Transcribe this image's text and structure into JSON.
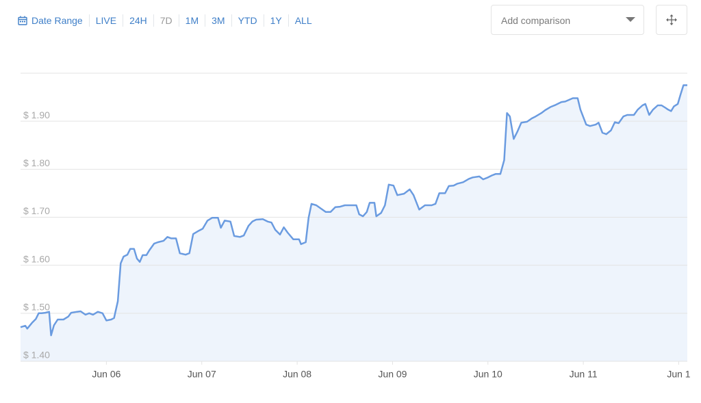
{
  "toolbar": {
    "date_range": "Date Range",
    "ranges": [
      "LIVE",
      "24H",
      "7D",
      "1M",
      "3M",
      "YTD",
      "1Y",
      "ALL"
    ],
    "comparison_placeholder": "Add comparison"
  },
  "chart_data": {
    "type": "area",
    "color": "#6a9be0",
    "fill": "#eef4fc",
    "grid": true,
    "xlim": [
      -0.9,
      6.09
    ],
    "ylim": [
      1.4,
      2.0
    ],
    "xticks": [
      {
        "value": 0,
        "label": "Jun 06"
      },
      {
        "value": 1,
        "label": "Jun 07"
      },
      {
        "value": 2,
        "label": "Jun 08"
      },
      {
        "value": 3,
        "label": "Jun 09"
      },
      {
        "value": 4,
        "label": "Jun 10"
      },
      {
        "value": 5,
        "label": "Jun 11"
      },
      {
        "value": 6,
        "label": "Jun 1"
      }
    ],
    "yticks": [
      {
        "value": 1.4,
        "label": "$ 1.40"
      },
      {
        "value": 1.5,
        "label": "$ 1.50"
      },
      {
        "value": 1.6,
        "label": "$ 1.60"
      },
      {
        "value": 1.7,
        "label": "$ 1.70"
      },
      {
        "value": 1.8,
        "label": "$ 1.80"
      },
      {
        "value": 1.9,
        "label": "$ 1.90"
      }
    ],
    "x": [
      -0.9,
      -0.85,
      -0.83,
      -0.78,
      -0.74,
      -0.71,
      -0.68,
      -0.64,
      -0.6,
      -0.58,
      -0.55,
      -0.51,
      -0.45,
      -0.4,
      -0.37,
      -0.31,
      -0.27,
      -0.22,
      -0.18,
      -0.14,
      -0.09,
      -0.04,
      0,
      0.05,
      0.08,
      0.12,
      0.15,
      0.18,
      0.22,
      0.25,
      0.29,
      0.32,
      0.35,
      0.38,
      0.42,
      0.45,
      0.5,
      0.54,
      0.6,
      0.64,
      0.68,
      0.73,
      0.77,
      0.83,
      0.87,
      0.91,
      0.97,
      1.01,
      1.06,
      1.11,
      1.17,
      1.2,
      1.24,
      1.3,
      1.34,
      1.4,
      1.44,
      1.49,
      1.53,
      1.57,
      1.64,
      1.69,
      1.73,
      1.77,
      1.82,
      1.86,
      1.9,
      1.96,
      2.02,
      2.04,
      2.09,
      2.12,
      2.15,
      2.2,
      2.25,
      2.3,
      2.35,
      2.4,
      2.45,
      2.5,
      2.56,
      2.62,
      2.65,
      2.69,
      2.73,
      2.76,
      2.81,
      2.83,
      2.88,
      2.92,
      2.96,
      3.01,
      3.05,
      3.12,
      3.18,
      3.22,
      3.28,
      3.34,
      3.41,
      3.45,
      3.49,
      3.55,
      3.59,
      3.64,
      3.68,
      3.74,
      3.8,
      3.84,
      3.91,
      3.95,
      4.0,
      4.04,
      4.08,
      4.13,
      4.17,
      4.2,
      4.23,
      4.27,
      4.31,
      4.35,
      4.41,
      4.46,
      4.5,
      4.56,
      4.6,
      4.66,
      4.71,
      4.77,
      4.81,
      4.89,
      4.94,
      4.97,
      5.03,
      5.07,
      5.13,
      5.16,
      5.2,
      5.24,
      5.29,
      5.33,
      5.37,
      5.42,
      5.46,
      5.53,
      5.57,
      5.62,
      5.65,
      5.69,
      5.73,
      5.78,
      5.82,
      5.86,
      5.89,
      5.92,
      5.95,
      5.99,
      6.02,
      6.05,
      6.09
    ],
    "values": [
      1.471,
      1.474,
      1.468,
      1.48,
      1.488,
      1.5,
      1.5,
      1.501,
      1.503,
      1.454,
      1.475,
      1.487,
      1.487,
      1.493,
      1.501,
      1.503,
      1.504,
      1.497,
      1.5,
      1.497,
      1.503,
      1.5,
      1.485,
      1.487,
      1.49,
      1.525,
      1.604,
      1.618,
      1.622,
      1.634,
      1.634,
      1.614,
      1.607,
      1.621,
      1.621,
      1.631,
      1.645,
      1.648,
      1.651,
      1.659,
      1.656,
      1.656,
      1.625,
      1.622,
      1.625,
      1.665,
      1.672,
      1.676,
      1.693,
      1.699,
      1.699,
      1.678,
      1.693,
      1.691,
      1.661,
      1.659,
      1.662,
      1.682,
      1.691,
      1.695,
      1.696,
      1.691,
      1.689,
      1.674,
      1.664,
      1.679,
      1.668,
      1.654,
      1.654,
      1.644,
      1.648,
      1.699,
      1.728,
      1.725,
      1.718,
      1.711,
      1.711,
      1.721,
      1.722,
      1.725,
      1.725,
      1.725,
      1.706,
      1.702,
      1.711,
      1.73,
      1.73,
      1.702,
      1.709,
      1.725,
      1.768,
      1.766,
      1.746,
      1.749,
      1.758,
      1.746,
      1.716,
      1.725,
      1.725,
      1.728,
      1.75,
      1.75,
      1.765,
      1.766,
      1.77,
      1.773,
      1.78,
      1.783,
      1.785,
      1.779,
      1.783,
      1.787,
      1.79,
      1.79,
      1.819,
      1.917,
      1.91,
      1.863,
      1.879,
      1.897,
      1.899,
      1.906,
      1.91,
      1.917,
      1.923,
      1.93,
      1.934,
      1.94,
      1.941,
      1.948,
      1.948,
      1.924,
      1.893,
      1.89,
      1.893,
      1.897,
      1.876,
      1.873,
      1.881,
      1.898,
      1.896,
      1.91,
      1.913,
      1.913,
      1.924,
      1.933,
      1.936,
      1.913,
      1.924,
      1.933,
      1.933,
      1.928,
      1.924,
      1.921,
      1.931,
      1.936,
      1.956,
      1.975,
      1.975
    ]
  }
}
